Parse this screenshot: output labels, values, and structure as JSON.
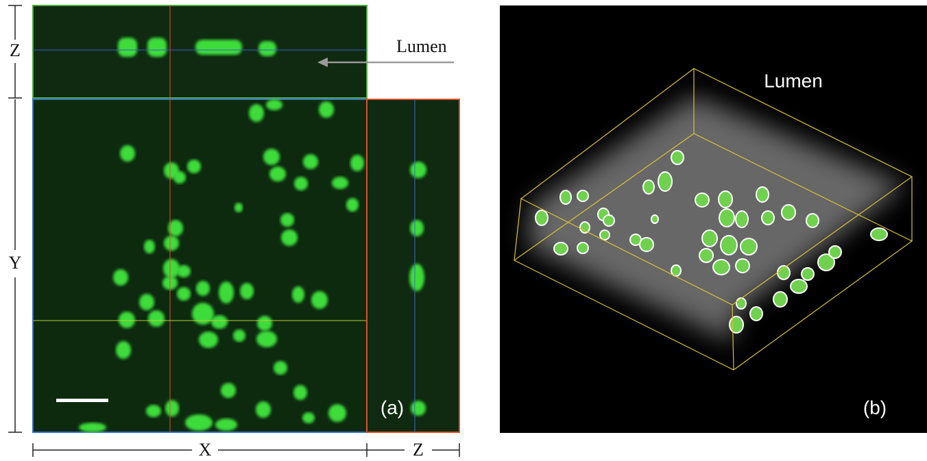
{
  "panel_a": {
    "axis_labels": {
      "z_top": "Z",
      "y": "Y",
      "x": "X",
      "z_bottom": "Z"
    },
    "annotation": "Lumen",
    "label": "(a)"
  },
  "panel_b": {
    "annotation": "Lumen",
    "label": "(b)"
  }
}
